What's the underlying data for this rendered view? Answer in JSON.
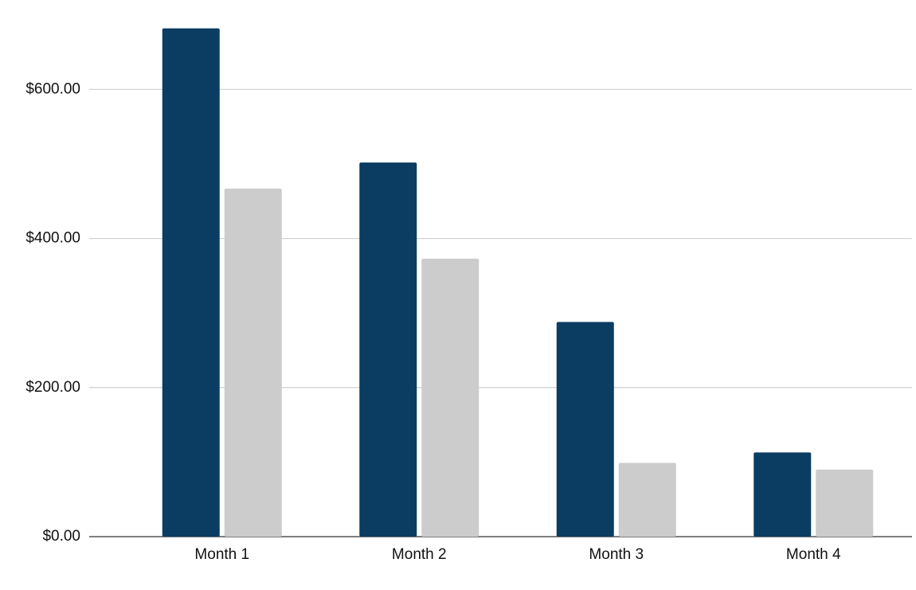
{
  "chart_data": {
    "type": "bar",
    "categories": [
      "Month 1",
      "Month 2",
      "Month 3",
      "Month 4"
    ],
    "series": [
      {
        "color": "#0b3c61",
        "values": [
          682,
          502,
          288,
          113
        ]
      },
      {
        "color": "#cccccc",
        "values": [
          467,
          373,
          99,
          90
        ]
      }
    ],
    "ylim": [
      0,
      720
    ],
    "yticks": [
      {
        "value": 0,
        "label": "$0.00"
      },
      {
        "value": 200,
        "label": "$200.00"
      },
      {
        "value": 400,
        "label": "$400.00"
      },
      {
        "value": 600,
        "label": "$600.00"
      }
    ],
    "grid": true
  }
}
